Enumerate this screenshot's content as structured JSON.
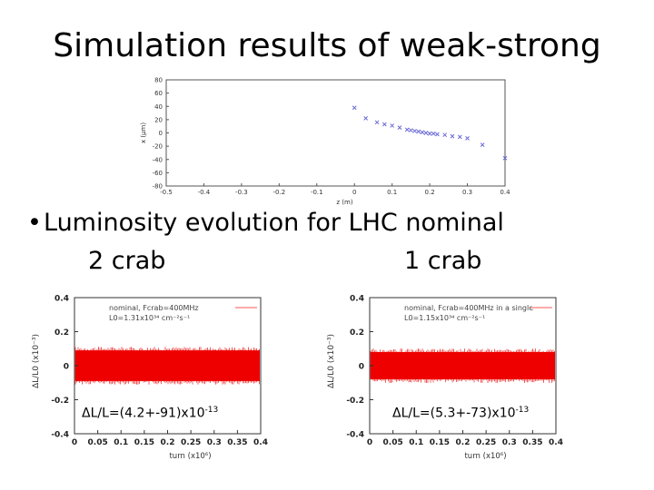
{
  "slide": {
    "title": "Simulation results of weak-strong",
    "bullet": "Luminosity evolution for LHC nominal",
    "label_left": "2 crab",
    "label_right": "1 crab"
  },
  "chart_data": [
    {
      "type": "scatter",
      "title": "",
      "xlabel": "z (m)",
      "ylabel": "x (μm)",
      "xlim": [
        -0.5,
        0.4
      ],
      "ylim": [
        -80,
        80
      ],
      "xticks": [
        "-0.5",
        "-0.4",
        "-0.3",
        "-0.2",
        "-0.1",
        "0",
        "0.1",
        "0.2",
        "0.3",
        "0.4"
      ],
      "yticks": [
        "80",
        "60",
        "40",
        "20",
        "0",
        "-20",
        "-40",
        "-60",
        "-80"
      ],
      "marker_color": "#6a6ad8",
      "x": [
        0.0,
        0.03,
        0.06,
        0.08,
        0.1,
        0.12,
        0.14,
        0.15,
        0.16,
        0.17,
        0.18,
        0.19,
        0.2,
        0.21,
        0.22,
        0.24,
        0.26,
        0.28,
        0.3,
        0.34,
        0.4
      ],
      "y": [
        38,
        22,
        16,
        13,
        11,
        8,
        5,
        4,
        3,
        2,
        1,
        0,
        -1,
        -1,
        -2,
        -3,
        -5,
        -6,
        -8,
        -18,
        -38
      ]
    },
    {
      "type": "area",
      "series_name": "nominal, Fcrab=400MHz",
      "legend_line2": "L0=1.31x10³⁴ cm⁻²s⁻¹",
      "xlabel": "turn (x10⁶)",
      "ylabel": "ΔL/L0 (x10⁻³)",
      "xlim": [
        0,
        0.4
      ],
      "ylim": [
        -0.4,
        0.4
      ],
      "xticks": [
        "0",
        "0.05",
        "0.1",
        "0.15",
        "0.2",
        "0.25",
        "0.3",
        "0.35",
        "0.4"
      ],
      "yticks": [
        "0.4",
        "0.2",
        "0",
        "-0.2",
        "-0.4"
      ],
      "band": [
        -0.09,
        0.09
      ],
      "annotation_base": "ΔL/L=(4.2+-91)x10",
      "annotation_exp": "-13",
      "color": "#ee0000"
    },
    {
      "type": "area",
      "series_name": "nominal, Fcrab=400MHz in a single",
      "legend_line2": "L0=1.15x10³⁴ cm⁻²s⁻¹",
      "xlabel": "turn (x10⁶)",
      "ylabel": "ΔL/L0 (x10⁻³)",
      "xlim": [
        0,
        0.4
      ],
      "ylim": [
        -0.4,
        0.4
      ],
      "xticks": [
        "0",
        "0.05",
        "0.1",
        "0.15",
        "0.2",
        "0.25",
        "0.3",
        "0.35",
        "0.4"
      ],
      "yticks": [
        "0.4",
        "0.2",
        "0",
        "-0.2",
        "-0.4"
      ],
      "band": [
        -0.08,
        0.08
      ],
      "annotation_base": "ΔL/L=(5.3+-73)x10",
      "annotation_exp": "-13",
      "color": "#ee0000"
    }
  ]
}
